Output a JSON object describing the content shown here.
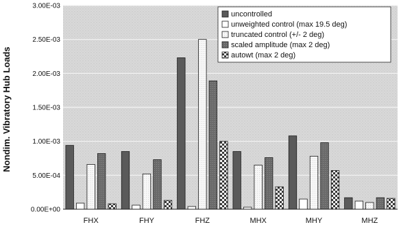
{
  "chart_data": {
    "type": "bar",
    "title": "",
    "xlabel": "",
    "ylabel": "Nondim. Vibratory Hub Loads",
    "ylim": [
      0,
      0.003
    ],
    "yticks": [
      {
        "value": 0,
        "label": "0.00E+00"
      },
      {
        "value": 0.0005,
        "label": "5.00E-04"
      },
      {
        "value": 0.001,
        "label": "1.00E-03"
      },
      {
        "value": 0.0015,
        "label": "1.50E-03"
      },
      {
        "value": 0.002,
        "label": "2.00E-03"
      },
      {
        "value": 0.0025,
        "label": "2.50E-03"
      },
      {
        "value": 0.003,
        "label": "3.00E-03"
      }
    ],
    "categories": [
      "FHX",
      "FHY",
      "FHZ",
      "MHX",
      "MHY",
      "MHZ"
    ],
    "grid": true,
    "legend_position": "top-right",
    "series": [
      {
        "name": "uncontrolled",
        "color": "#5a5a5a",
        "pattern": "dark",
        "values": [
          0.00094,
          0.00085,
          0.00223,
          0.00085,
          0.00108,
          0.00017
        ]
      },
      {
        "name": "unweighted control (max 19.5 deg)",
        "color": "#ffffff",
        "pattern": "white",
        "values": [
          9e-05,
          6e-05,
          4e-05,
          3e-05,
          0.00015,
          0.00012
        ]
      },
      {
        "name": "truncated control (+/- 2 deg)",
        "color": "#f2f2f2",
        "pattern": "light",
        "values": [
          0.00066,
          0.00052,
          0.0025,
          0.00065,
          0.00078,
          0.0001
        ]
      },
      {
        "name": "scaled amplitude (max 2 deg)",
        "color": "#6e6e6e",
        "pattern": "mid",
        "values": [
          0.00082,
          0.00073,
          0.00189,
          0.00076,
          0.00098,
          0.00017
        ]
      },
      {
        "name": "autowt (max 2 deg)",
        "color": "#888888",
        "pattern": "checker",
        "values": [
          8e-05,
          0.00013,
          0.001,
          0.00033,
          0.00057,
          0.00016
        ]
      }
    ]
  }
}
